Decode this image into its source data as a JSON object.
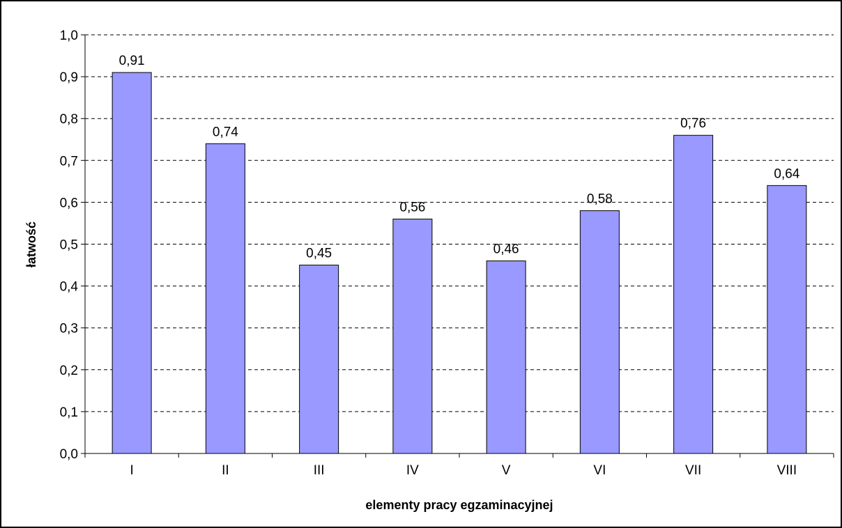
{
  "chart_data": {
    "type": "bar",
    "categories": [
      "I",
      "II",
      "III",
      "IV",
      "V",
      "VI",
      "VII",
      "VIII"
    ],
    "values": [
      0.91,
      0.74,
      0.45,
      0.56,
      0.46,
      0.58,
      0.76,
      0.64
    ],
    "data_labels": [
      "0,91",
      "0,74",
      "0,45",
      "0,56",
      "0,46",
      "0,58",
      "0,76",
      "0,64"
    ],
    "xlabel": "elementy pracy egzaminacyjnej",
    "ylabel": "łatwość",
    "ylim": [
      0,
      1.0
    ],
    "yticks": [
      0,
      0.1,
      0.2,
      0.3,
      0.4,
      0.5,
      0.6,
      0.7,
      0.8,
      0.9,
      1.0
    ],
    "ytick_labels": [
      "0,0",
      "0,1",
      "0,2",
      "0,3",
      "0,4",
      "0,5",
      "0,6",
      "0,7",
      "0,8",
      "0,9",
      "1,0"
    ],
    "grid": true,
    "legend": "none",
    "bar_color": "#9999ff",
    "bar_edge_color": "#000000"
  }
}
